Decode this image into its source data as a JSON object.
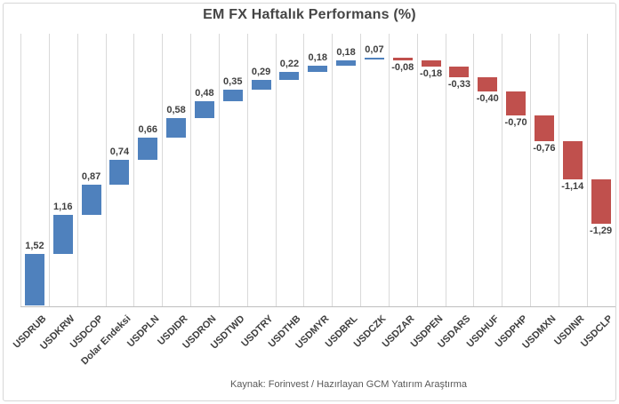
{
  "chart_data": {
    "type": "bar",
    "subtype": "waterfall",
    "title": "EM FX Haftalık Performans (%)",
    "categories": [
      "USDRUB",
      "USDKRW",
      "USDCOP",
      "Dolar Endeksi",
      "USDPLN",
      "USDIDR",
      "USDRON",
      "USDTWD",
      "USDTRY",
      "USDTHB",
      "USDMYR",
      "USDBRL",
      "USDCZK",
      "USDZAR",
      "USDPEN",
      "USDARS",
      "USDHUF",
      "USDPHP",
      "USDMXN",
      "USDINR",
      "USDCLP"
    ],
    "values": [
      1.52,
      1.16,
      0.87,
      0.74,
      0.66,
      0.58,
      0.48,
      0.35,
      0.29,
      0.22,
      0.18,
      0.18,
      0.07,
      -0.08,
      -0.18,
      -0.33,
      -0.4,
      -0.7,
      -0.76,
      -1.14,
      -1.29
    ],
    "value_labels": [
      "1,52",
      "1,16",
      "0,87",
      "0,74",
      "0,66",
      "0,58",
      "0,48",
      "0,35",
      "0,29",
      "0,22",
      "0,18",
      "0,18",
      "0,07",
      "-0,08",
      "-0,18",
      "-0,33",
      "-0,40",
      "-0,70",
      "-0,76",
      "-1,14",
      "-1,29"
    ],
    "xlabel": "",
    "ylabel": "",
    "ylim": [
      0,
      8
    ],
    "grid": "vertical-only",
    "legend": "none",
    "colors": {
      "positive_bar": "#4F81BD",
      "negative_bar": "#C0504D",
      "gridline": "#D9D9D9",
      "axis_line": "#BFBFBF",
      "label_text": "#3F3F3F",
      "title_text": "#454545",
      "source_text": "#595959",
      "frame_border": "#D7D7D7"
    },
    "source_note": "Kaynak: Forinvest / Hazırlayan GCM Yatırım Araştırma"
  }
}
